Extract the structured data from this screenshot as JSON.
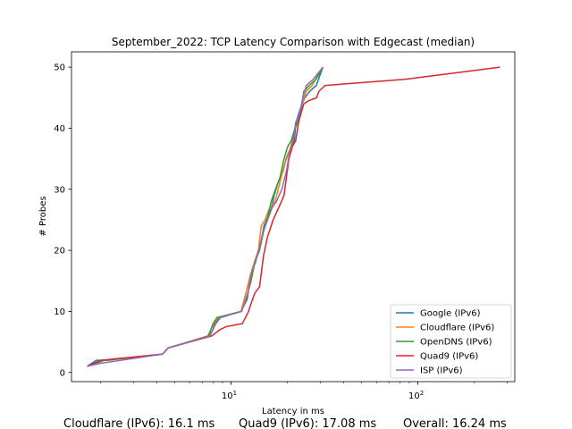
{
  "chart_data": {
    "type": "line",
    "title": "September_2022: TCP Latency Comparison with Edgecast (median)",
    "xlabel": "Latency in ms",
    "ylabel": "# Probes",
    "xscale": "log",
    "xlim": [
      1.4,
      330
    ],
    "ylim": [
      -1.5,
      52.5
    ],
    "xticks": [
      {
        "value": 10,
        "base": "10",
        "exp": "1"
      },
      {
        "value": 100,
        "base": "10",
        "exp": "2"
      }
    ],
    "yticks": [
      0,
      10,
      20,
      30,
      40,
      50
    ],
    "grid": false,
    "legend": "bottom-right",
    "series": [
      {
        "name": "Google (IPv6)",
        "color": "#1f77b4",
        "x": [
          1.7,
          1.9,
          2.2,
          4.3,
          4.6,
          7.7,
          8.0,
          8.2,
          8.6,
          11.3,
          12.2,
          12.6,
          13.0,
          13.5,
          14.0,
          14.6,
          15.0,
          15.5,
          16.5,
          17.0,
          17.8,
          19.0,
          19.7,
          20.3,
          21.0,
          21.8,
          22.3,
          22.8,
          23.4,
          24.0,
          24.8,
          26.3,
          28.6,
          31.0
        ],
        "y": [
          1,
          2,
          2,
          3,
          4,
          6,
          7,
          8,
          9,
          10,
          12,
          15,
          17,
          18,
          20,
          22,
          24,
          25,
          27,
          29,
          31,
          33,
          35,
          36,
          37,
          38,
          41,
          42,
          43,
          44,
          45,
          46,
          47,
          50
        ]
      },
      {
        "name": "Cloudflare (IPv6)",
        "color": "#ff7f0e",
        "x": [
          1.7,
          2.1,
          4.3,
          4.6,
          7.5,
          8.1,
          8.5,
          11.3,
          12.0,
          12.7,
          13.3,
          14.0,
          14.5,
          15.2,
          16.1,
          17.2,
          18.2,
          19.3,
          20.4,
          21.3,
          22.0,
          23.0,
          24.0,
          25.2,
          27.2,
          29.5,
          31.0
        ],
        "y": [
          1,
          2,
          3,
          4,
          6,
          8,
          9,
          10,
          13,
          16,
          18,
          20,
          24,
          25,
          27,
          28,
          31,
          34,
          36,
          38,
          40,
          41,
          44,
          46,
          47,
          49,
          50
        ]
      },
      {
        "name": "OpenDNS (IPv6)",
        "color": "#2ca02c",
        "x": [
          1.7,
          2.1,
          4.3,
          4.6,
          7.6,
          8.0,
          8.4,
          11.4,
          12.3,
          12.8,
          13.4,
          14.2,
          14.9,
          15.6,
          16.4,
          17.3,
          18.3,
          19.2,
          20.1,
          21.0,
          22.0,
          23.4,
          24.5,
          26.2,
          28.5,
          31.0
        ],
        "y": [
          1,
          2,
          3,
          4,
          6,
          8,
          9,
          10,
          13,
          15,
          18,
          20,
          23,
          25,
          28,
          30,
          32,
          35,
          37,
          38,
          40,
          42,
          46,
          47,
          48,
          50
        ]
      },
      {
        "name": "Quad9 (IPv6)",
        "color": "#d62728",
        "x": [
          1.7,
          2.0,
          4.3,
          4.6,
          7.9,
          8.7,
          9.4,
          11.5,
          12.4,
          12.7,
          13.4,
          14.2,
          14.9,
          15.6,
          16.8,
          18.0,
          19.2,
          19.8,
          20.4,
          21.3,
          22.2,
          23.0,
          24.5,
          26.0,
          28.7,
          29.5,
          31.8,
          85.0,
          275.0
        ],
        "y": [
          1,
          2,
          3,
          4,
          6,
          7,
          7.5,
          8,
          10,
          11,
          13,
          14,
          19,
          22,
          25,
          27,
          29,
          32,
          35,
          37,
          38,
          41,
          44,
          44.5,
          45,
          46,
          47,
          48,
          50
        ]
      },
      {
        "name": "ISP (IPv6)",
        "color": "#9467bd",
        "x": [
          1.7,
          2.0,
          4.3,
          4.6,
          7.7,
          8.3,
          8.8,
          11.4,
          12.3,
          12.8,
          13.4,
          14.1,
          14.8,
          15.7,
          16.6,
          17.5,
          18.7,
          19.8,
          20.6,
          21.5,
          22.2,
          23.2,
          24.2,
          25.3,
          27.5,
          31.0
        ],
        "y": [
          1,
          1.5,
          3,
          4,
          6,
          8,
          9,
          10,
          13,
          16,
          18,
          20,
          23,
          25,
          27,
          28,
          30,
          33,
          36,
          38,
          41,
          42,
          45,
          47,
          48,
          50
        ]
      }
    ]
  },
  "summary": {
    "cloudflare": "Cloudflare (IPv6): 16.1 ms",
    "quad9": "Quad9 (IPv6): 17.08 ms",
    "overall": "Overall: 16.24 ms"
  }
}
